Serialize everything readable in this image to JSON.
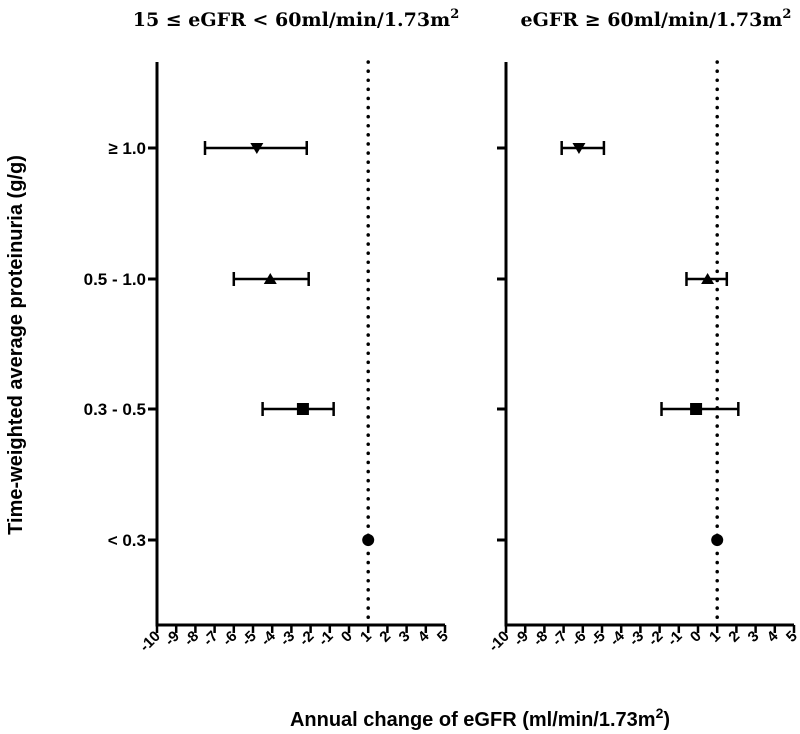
{
  "chart_data": {
    "type": "forest",
    "ylabel": "Time-weighted average proteinuria (g/g)",
    "xlabel_main": "Annual change of eGFR (ml/min/1.73m",
    "xlabel_sup": "2",
    "xlabel_close": ")",
    "categories": [
      "≥ 1.0",
      "0.5 - 1.0",
      "0.3 - 0.5",
      "< 0.3"
    ],
    "markers": [
      "triangle-down",
      "triangle-up",
      "square",
      "circle"
    ],
    "xlim": [
      -10,
      5
    ],
    "xticks": [
      "-10",
      "-9",
      "-8",
      "-7",
      "-6",
      "-5",
      "-4",
      "-3",
      "-2",
      "-1",
      "0",
      "1",
      "2",
      "3",
      "4",
      "5"
    ],
    "reference_line": 1,
    "panels": [
      {
        "title_main": "15 ≤ eGFR < 60ml/min/1.73m",
        "title_sup": "2",
        "estimates": [
          {
            "category": "≥ 1.0",
            "value": -4.8,
            "lower": -7.5,
            "upper": -2.2
          },
          {
            "category": "0.5 - 1.0",
            "value": -4.1,
            "lower": -6.0,
            "upper": -2.1
          },
          {
            "category": "0.3 - 0.5",
            "value": -2.4,
            "lower": -4.5,
            "upper": -0.8
          },
          {
            "category": "< 0.3",
            "value": 1,
            "lower": 1,
            "upper": 1
          }
        ]
      },
      {
        "title_main": "eGFR ≥ 60ml/min/1.73m",
        "title_sup": "2",
        "estimates": [
          {
            "category": "≥ 1.0",
            "value": -6.2,
            "lower": -7.1,
            "upper": -4.9
          },
          {
            "category": "0.5 - 1.0",
            "value": 0.5,
            "lower": -0.6,
            "upper": 1.5
          },
          {
            "category": "0.3 - 0.5",
            "value": -0.1,
            "lower": -1.9,
            "upper": 2.1
          },
          {
            "category": "< 0.3",
            "value": 1,
            "lower": 1,
            "upper": 1
          }
        ]
      }
    ]
  }
}
